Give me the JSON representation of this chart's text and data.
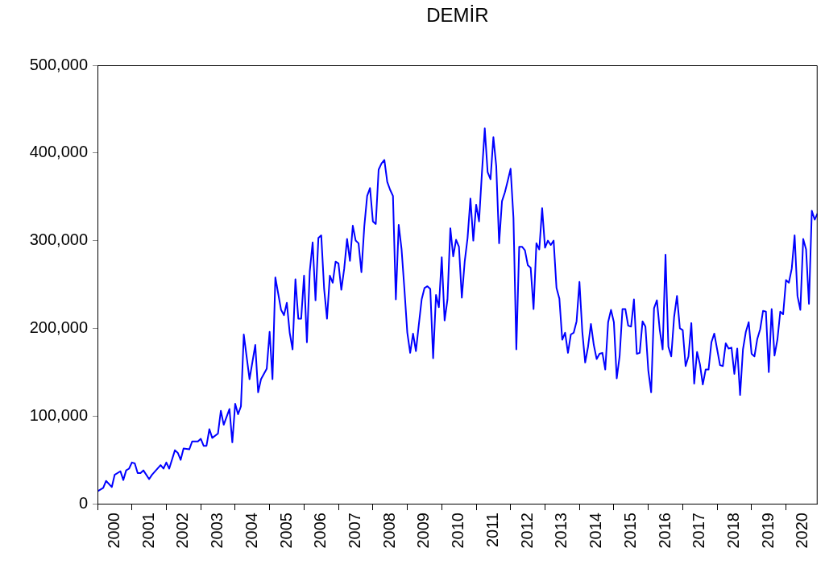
{
  "chart_data": {
    "type": "line",
    "title": "DEMİR",
    "xlim": [
      "2000-01",
      "2020-12"
    ],
    "xticks": [
      {
        "value": "2000-01",
        "label": null
      },
      {
        "value": "2000-07",
        "label": "2000"
      },
      {
        "value": "2001-01",
        "label": null
      },
      {
        "value": "2001-07",
        "label": "2001"
      },
      {
        "value": "2002-01",
        "label": null
      },
      {
        "value": "2002-07",
        "label": "2002"
      },
      {
        "value": "2003-01",
        "label": null
      },
      {
        "value": "2003-07",
        "label": "2003"
      },
      {
        "value": "2004-01",
        "label": null
      },
      {
        "value": "2004-07",
        "label": "2004"
      },
      {
        "value": "2005-01",
        "label": null
      },
      {
        "value": "2005-07",
        "label": "2005"
      },
      {
        "value": "2006-01",
        "label": null
      },
      {
        "value": "2006-07",
        "label": "2006"
      },
      {
        "value": "2007-01",
        "label": null
      },
      {
        "value": "2007-07",
        "label": "2007"
      },
      {
        "value": "2008-01",
        "label": null
      },
      {
        "value": "2008-07",
        "label": "2008"
      },
      {
        "value": "2009-01",
        "label": null
      },
      {
        "value": "2009-07",
        "label": "2009"
      },
      {
        "value": "2010-01",
        "label": null
      },
      {
        "value": "2010-07",
        "label": "2010"
      },
      {
        "value": "2011-01",
        "label": null
      },
      {
        "value": "2011-07",
        "label": "2011"
      },
      {
        "value": "2012-01",
        "label": null
      },
      {
        "value": "2012-07",
        "label": "2012"
      },
      {
        "value": "2013-01",
        "label": null
      },
      {
        "value": "2013-07",
        "label": "2013"
      },
      {
        "value": "2014-01",
        "label": null
      },
      {
        "value": "2014-07",
        "label": "2014"
      },
      {
        "value": "2015-01",
        "label": null
      },
      {
        "value": "2015-07",
        "label": "2015"
      },
      {
        "value": "2016-01",
        "label": null
      },
      {
        "value": "2016-07",
        "label": "2016"
      },
      {
        "value": "2017-01",
        "label": null
      },
      {
        "value": "2017-07",
        "label": "2017"
      },
      {
        "value": "2018-01",
        "label": null
      },
      {
        "value": "2018-07",
        "label": "2018"
      },
      {
        "value": "2019-01",
        "label": null
      },
      {
        "value": "2019-07",
        "label": "2019"
      },
      {
        "value": "2020-01",
        "label": null
      },
      {
        "value": "2020-07",
        "label": "2020"
      }
    ],
    "ylim": [
      0,
      500000
    ],
    "yticks": [
      {
        "value": 0,
        "label": "0"
      },
      {
        "value": 100000,
        "label": "100,000"
      },
      {
        "value": 200000,
        "label": "200,000"
      },
      {
        "value": 300000,
        "label": "300,000"
      },
      {
        "value": 400000,
        "label": "400,000"
      },
      {
        "value": 500000,
        "label": "500,000"
      }
    ],
    "legend": false,
    "marker": "none",
    "line_style": "solid",
    "series": [
      {
        "color": "#0000ff",
        "x": [
          "2000-01",
          "2000-03",
          "2000-04",
          "2000-06",
          "2000-07",
          "2000-09",
          "2000-10",
          "2000-11",
          "2000-12",
          "2001-01",
          "2001-02",
          "2001-03",
          "2001-04",
          "2001-05",
          "2001-07",
          "2001-08",
          "2001-11",
          "2001-12",
          "2002-01",
          "2002-02",
          "2002-04",
          "2002-05",
          "2002-06",
          "2002-07",
          "2002-09",
          "2002-10",
          "2002-12",
          "2003-01",
          "2003-02",
          "2003-03",
          "2003-04",
          "2003-05",
          "2003-07",
          "2003-08",
          "2003-09",
          "2003-11",
          "2003-12",
          "2004-01",
          "2004-02",
          "2004-03",
          "2004-04",
          "2004-06",
          "2004-08",
          "2004-09",
          "2004-10",
          "2004-12",
          "2005-01",
          "2005-02",
          "2005-03",
          "2005-05",
          "2005-06",
          "2005-07",
          "2005-08",
          "2005-09",
          "2005-10",
          "2005-11",
          "2005-12",
          "2006-01",
          "2006-02",
          "2006-03",
          "2006-04",
          "2006-05",
          "2006-06",
          "2006-07",
          "2006-08",
          "2006-09",
          "2006-10",
          "2006-11",
          "2006-12",
          "2007-01",
          "2007-02",
          "2007-03",
          "2007-04",
          "2007-05",
          "2007-06",
          "2007-07",
          "2007-08",
          "2007-09",
          "2007-10",
          "2007-11",
          "2007-12",
          "2008-01",
          "2008-02",
          "2008-03",
          "2008-04",
          "2008-05",
          "2008-06",
          "2008-07",
          "2008-08",
          "2008-09",
          "2008-10",
          "2008-11",
          "2008-12",
          "2009-01",
          "2009-02",
          "2009-03",
          "2009-04",
          "2009-05",
          "2009-06",
          "2009-07",
          "2009-08",
          "2009-09",
          "2009-10",
          "2009-11",
          "2009-12",
          "2010-01",
          "2010-02",
          "2010-03",
          "2010-04",
          "2010-05",
          "2010-06",
          "2010-07",
          "2010-08",
          "2010-09",
          "2010-10",
          "2010-11",
          "2010-12",
          "2011-01",
          "2011-02",
          "2011-03",
          "2011-04",
          "2011-05",
          "2011-06",
          "2011-07",
          "2011-08",
          "2011-09",
          "2011-10",
          "2011-11",
          "2011-12",
          "2012-01",
          "2012-02",
          "2012-03",
          "2012-04",
          "2012-05",
          "2012-06",
          "2012-07",
          "2012-08",
          "2012-09",
          "2012-10",
          "2012-11",
          "2012-12",
          "2013-01",
          "2013-02",
          "2013-03",
          "2013-04",
          "2013-05",
          "2013-06",
          "2013-07",
          "2013-08",
          "2013-09",
          "2013-10",
          "2013-11",
          "2013-12",
          "2014-01",
          "2014-02",
          "2014-03",
          "2014-04",
          "2014-05",
          "2014-06",
          "2014-07",
          "2014-08",
          "2014-09",
          "2014-10",
          "2014-11",
          "2014-12",
          "2015-01",
          "2015-02",
          "2015-03",
          "2015-04",
          "2015-05",
          "2015-06",
          "2015-07",
          "2015-08",
          "2015-09",
          "2015-10",
          "2015-11",
          "2015-12",
          "2016-01",
          "2016-02",
          "2016-03",
          "2016-04",
          "2016-05",
          "2016-06",
          "2016-07",
          "2016-08",
          "2016-09",
          "2016-10",
          "2016-11",
          "2016-12",
          "2017-01",
          "2017-02",
          "2017-03",
          "2017-04",
          "2017-05",
          "2017-06",
          "2017-07",
          "2017-08",
          "2017-09",
          "2017-10",
          "2017-11",
          "2017-12",
          "2018-01",
          "2018-02",
          "2018-03",
          "2018-04",
          "2018-05",
          "2018-06",
          "2018-07",
          "2018-08",
          "2018-09",
          "2018-10",
          "2018-11",
          "2018-12",
          "2019-01",
          "2019-02",
          "2019-03",
          "2019-04",
          "2019-05",
          "2019-06",
          "2019-07",
          "2019-08",
          "2019-09",
          "2019-10",
          "2019-11",
          "2019-12",
          "2020-01",
          "2020-02",
          "2020-03",
          "2020-04",
          "2020-05",
          "2020-06",
          "2020-07",
          "2020-08",
          "2020-09",
          "2020-10",
          "2020-11",
          "2020-12"
        ],
        "values": [
          14000,
          18000,
          26000,
          19000,
          33000,
          37000,
          27000,
          38000,
          40000,
          47000,
          46000,
          35000,
          35000,
          38000,
          28000,
          33000,
          44000,
          40000,
          47000,
          40000,
          61000,
          58000,
          50000,
          63000,
          62000,
          71000,
          71000,
          74000,
          66000,
          66000,
          85000,
          75000,
          80000,
          106000,
          90000,
          108000,
          70000,
          114000,
          102000,
          111000,
          193000,
          142000,
          181000,
          127000,
          142000,
          154000,
          196000,
          142000,
          258000,
          221000,
          215000,
          229000,
          195000,
          176000,
          256000,
          211000,
          211000,
          260000,
          184000,
          265000,
          298000,
          232000,
          303000,
          306000,
          245000,
          211000,
          260000,
          252000,
          276000,
          274000,
          244000,
          268000,
          302000,
          277000,
          317000,
          300000,
          297000,
          264000,
          316000,
          351000,
          360000,
          322000,
          319000,
          381000,
          388000,
          392000,
          367000,
          358000,
          351000,
          233000,
          318000,
          290000,
          244000,
          195000,
          172000,
          194000,
          174000,
          204000,
          233000,
          246000,
          248000,
          245000,
          166000,
          238000,
          224000,
          281000,
          209000,
          233000,
          314000,
          282000,
          301000,
          293000,
          235000,
          276000,
          303000,
          348000,
          300000,
          341000,
          322000,
          377000,
          428000,
          378000,
          370000,
          418000,
          385000,
          297000,
          345000,
          355000,
          368000,
          382000,
          326000,
          176000,
          293000,
          293000,
          289000,
          272000,
          269000,
          222000,
          297000,
          290000,
          337000,
          292000,
          300000,
          295000,
          300000,
          246000,
          234000,
          187000,
          195000,
          172000,
          193000,
          195000,
          208000,
          253000,
          196000,
          161000,
          179000,
          205000,
          181000,
          165000,
          171000,
          172000,
          153000,
          207000,
          221000,
          207000,
          143000,
          168000,
          222000,
          222000,
          203000,
          202000,
          233000,
          171000,
          172000,
          208000,
          202000,
          152000,
          127000,
          223000,
          232000,
          198000,
          176000,
          284000,
          179000,
          168000,
          213000,
          237000,
          200000,
          198000,
          157000,
          168000,
          206000,
          137000,
          173000,
          159000,
          136000,
          153000,
          153000,
          184000,
          194000,
          176000,
          158000,
          157000,
          183000,
          177000,
          178000,
          148000,
          177000,
          124000,
          176000,
          196000,
          207000,
          171000,
          168000,
          188000,
          199000,
          220000,
          219000,
          150000,
          222000,
          169000,
          187000,
          219000,
          216000,
          255000,
          252000,
          268000,
          306000,
          237000,
          221000,
          302000,
          290000,
          228000,
          334000,
          324000,
          331000
        ]
      }
    ]
  }
}
